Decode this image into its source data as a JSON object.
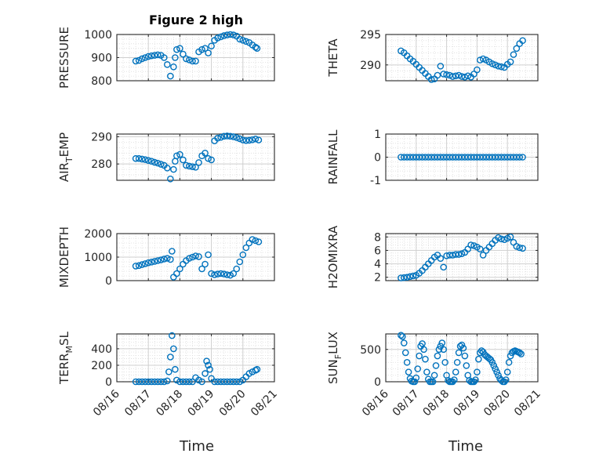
{
  "figure": {
    "title": "Figure 2 high",
    "marker_color": "#0072BD"
  },
  "chart_data": [
    {
      "type": "scatter",
      "ylabel_main": "PRESSURE",
      "ylabel_sub": "",
      "ylim": [
        800,
        1000
      ],
      "yticks": [
        800,
        900,
        1000
      ],
      "xlim": [
        0,
        5
      ],
      "xticks": [
        0,
        1,
        2,
        3,
        4,
        5
      ],
      "xticklabels": [
        "08/16",
        "08/17",
        "08/18",
        "08/19",
        "08/20",
        "08/21"
      ],
      "x": [
        0.6,
        0.7,
        0.8,
        0.9,
        1.0,
        1.1,
        1.2,
        1.3,
        1.4,
        1.5,
        1.6,
        1.7,
        1.8,
        1.85,
        1.9,
        2.0,
        2.1,
        2.2,
        2.3,
        2.4,
        2.5,
        2.6,
        2.7,
        2.8,
        2.9,
        3.0,
        3.1,
        3.2,
        3.3,
        3.4,
        3.5,
        3.6,
        3.7,
        3.8,
        3.9,
        4.0,
        4.1,
        4.2,
        4.3,
        4.4,
        4.45
      ],
      "y": [
        885,
        888,
        895,
        900,
        905,
        908,
        910,
        912,
        910,
        900,
        870,
        820,
        860,
        900,
        935,
        940,
        915,
        895,
        890,
        885,
        885,
        925,
        935,
        940,
        920,
        950,
        975,
        985,
        990,
        995,
        998,
        1000,
        998,
        993,
        980,
        975,
        970,
        965,
        955,
        945,
        940
      ],
      "grid": true,
      "minor_grid": true
    },
    {
      "type": "scatter",
      "ylabel_main": "THETA",
      "ylabel_sub": "",
      "ylim": [
        287.4,
        295
      ],
      "yticks": [
        290,
        295
      ],
      "xlim": [
        0,
        5
      ],
      "xticks": [
        0,
        1,
        2,
        3,
        4,
        5
      ],
      "xticklabels": [
        "08/16",
        "08/17",
        "08/18",
        "08/19",
        "08/20",
        "08/21"
      ],
      "x": [
        0.5,
        0.6,
        0.7,
        0.8,
        0.9,
        1.0,
        1.1,
        1.2,
        1.3,
        1.4,
        1.5,
        1.6,
        1.7,
        1.8,
        1.9,
        2.0,
        2.1,
        2.2,
        2.3,
        2.4,
        2.5,
        2.6,
        2.7,
        2.8,
        2.9,
        3.0,
        3.1,
        3.2,
        3.3,
        3.4,
        3.5,
        3.6,
        3.7,
        3.8,
        3.9,
        4.0,
        4.1,
        4.2,
        4.3,
        4.4,
        4.5
      ],
      "y": [
        292.3,
        292.0,
        291.5,
        291.0,
        290.6,
        290.1,
        289.6,
        289.1,
        288.6,
        288.1,
        287.6,
        287.7,
        288.3,
        289.8,
        288.5,
        288.4,
        288.3,
        288.1,
        288.2,
        288.3,
        288.1,
        288.0,
        288.2,
        288.0,
        288.5,
        289.2,
        290.8,
        291.0,
        290.8,
        290.5,
        290.2,
        290.0,
        289.8,
        289.7,
        289.6,
        290.1,
        290.5,
        291.7,
        292.7,
        293.5,
        294.0
      ],
      "grid": true,
      "minor_grid": true
    },
    {
      "type": "scatter",
      "ylabel_main": "AIR",
      "ylabel_sub": "T",
      "ylabel_rest": "EMP",
      "ylim": [
        274,
        291
      ],
      "yticks": [
        280,
        290
      ],
      "xlim": [
        0,
        5
      ],
      "xticks": [
        0,
        1,
        2,
        3,
        4,
        5
      ],
      "xticklabels": [
        "08/16",
        "08/17",
        "08/18",
        "08/19",
        "08/20",
        "08/21"
      ],
      "x": [
        0.6,
        0.7,
        0.8,
        0.9,
        1.0,
        1.1,
        1.2,
        1.3,
        1.4,
        1.5,
        1.6,
        1.7,
        1.8,
        1.85,
        1.9,
        2.0,
        2.1,
        2.2,
        2.3,
        2.4,
        2.5,
        2.6,
        2.7,
        2.8,
        2.9,
        3.0,
        3.1,
        3.2,
        3.3,
        3.4,
        3.5,
        3.6,
        3.7,
        3.8,
        3.9,
        4.0,
        4.1,
        4.2,
        4.3,
        4.4,
        4.5
      ],
      "y": [
        282,
        282,
        281.8,
        281.6,
        281.3,
        281,
        280.6,
        280.3,
        279.9,
        279.5,
        278.5,
        274.5,
        278,
        281,
        283,
        283.5,
        281.5,
        279.5,
        279.2,
        279,
        278.8,
        280.5,
        283,
        284,
        282,
        281.5,
        288.5,
        289.5,
        289.8,
        290.2,
        290.3,
        290.2,
        290,
        289.7,
        289.3,
        288.8,
        288.6,
        288.7,
        288.9,
        289.2,
        288.8
      ],
      "grid": true,
      "minor_grid": true
    },
    {
      "type": "scatter",
      "ylabel_main": "RAINFALL",
      "ylabel_sub": "",
      "ylim": [
        -1,
        1
      ],
      "yticks": [
        -1,
        0,
        1
      ],
      "xlim": [
        0,
        5
      ],
      "xticks": [
        0,
        1,
        2,
        3,
        4,
        5
      ],
      "xticklabels": [
        "08/16",
        "08/17",
        "08/18",
        "08/19",
        "08/20",
        "08/21"
      ],
      "x": [
        0.5,
        0.6,
        0.7,
        0.8,
        0.9,
        1.0,
        1.1,
        1.2,
        1.3,
        1.4,
        1.5,
        1.6,
        1.7,
        1.8,
        1.9,
        2.0,
        2.1,
        2.2,
        2.3,
        2.4,
        2.5,
        2.6,
        2.7,
        2.8,
        2.9,
        3.0,
        3.1,
        3.2,
        3.3,
        3.4,
        3.5,
        3.6,
        3.7,
        3.8,
        3.9,
        4.0,
        4.1,
        4.2,
        4.3,
        4.4,
        4.5
      ],
      "y": [
        0,
        0,
        0,
        0,
        0,
        0,
        0,
        0,
        0,
        0,
        0,
        0,
        0,
        0,
        0,
        0,
        0,
        0,
        0,
        0,
        0,
        0,
        0,
        0,
        0,
        0,
        0,
        0,
        0,
        0,
        0,
        0,
        0,
        0,
        0,
        0,
        0,
        0,
        0,
        0,
        0
      ],
      "grid": true,
      "minor_grid": true
    },
    {
      "type": "scatter",
      "ylabel_main": "MIXDEPTH",
      "ylabel_sub": "",
      "ylim": [
        0,
        2000
      ],
      "yticks": [
        0,
        1000,
        2000
      ],
      "xlim": [
        0,
        5
      ],
      "xticks": [
        0,
        1,
        2,
        3,
        4,
        5
      ],
      "xticklabels": [
        "08/16",
        "08/17",
        "08/18",
        "08/19",
        "08/20",
        "08/21"
      ],
      "x": [
        0.6,
        0.7,
        0.8,
        0.9,
        1.0,
        1.1,
        1.2,
        1.3,
        1.4,
        1.5,
        1.6,
        1.7,
        1.75,
        1.8,
        1.9,
        2.0,
        2.1,
        2.2,
        2.3,
        2.4,
        2.5,
        2.6,
        2.7,
        2.8,
        2.9,
        3.0,
        3.1,
        3.2,
        3.3,
        3.4,
        3.5,
        3.6,
        3.7,
        3.8,
        3.9,
        4.0,
        4.1,
        4.2,
        4.3,
        4.4,
        4.5
      ],
      "y": [
        620,
        640,
        680,
        720,
        760,
        790,
        820,
        850,
        880,
        920,
        950,
        900,
        1250,
        150,
        300,
        500,
        700,
        850,
        950,
        1000,
        1050,
        1020,
        500,
        700,
        1100,
        300,
        250,
        280,
        300,
        280,
        250,
        230,
        300,
        500,
        800,
        1100,
        1400,
        1600,
        1750,
        1700,
        1650
      ],
      "grid": true,
      "minor_grid": true
    },
    {
      "type": "scatter",
      "ylabel_main": "H2OMIXRA",
      "ylabel_sub": "",
      "ylim": [
        1.5,
        8.5
      ],
      "yticks": [
        2,
        4,
        6,
        8
      ],
      "xlim": [
        0,
        5
      ],
      "xticks": [
        0,
        1,
        2,
        3,
        4,
        5
      ],
      "xticklabels": [
        "08/16",
        "08/17",
        "08/18",
        "08/19",
        "08/20",
        "08/21"
      ],
      "x": [
        0.5,
        0.6,
        0.7,
        0.8,
        0.9,
        1.0,
        1.1,
        1.2,
        1.3,
        1.4,
        1.5,
        1.6,
        1.7,
        1.8,
        1.9,
        2.0,
        2.1,
        2.2,
        2.3,
        2.4,
        2.5,
        2.6,
        2.7,
        2.8,
        2.9,
        3.0,
        3.1,
        3.2,
        3.3,
        3.4,
        3.5,
        3.6,
        3.7,
        3.8,
        3.9,
        4.0,
        4.1,
        4.2,
        4.3,
        4.4,
        4.5
      ],
      "y": [
        1.9,
        1.95,
        2.0,
        2.1,
        2.2,
        2.3,
        2.6,
        3.0,
        3.5,
        4.0,
        4.5,
        5.0,
        5.3,
        4.8,
        3.5,
        5.2,
        5.3,
        5.3,
        5.4,
        5.4,
        5.5,
        5.7,
        6.2,
        6.8,
        6.7,
        6.5,
        6.2,
        5.3,
        6.0,
        6.5,
        7.0,
        7.5,
        7.9,
        7.7,
        7.6,
        7.8,
        8.0,
        7.2,
        6.6,
        6.4,
        6.3
      ],
      "grid": true,
      "minor_grid": true
    },
    {
      "type": "scatter",
      "ylabel_main": "TERR",
      "ylabel_sub": "M",
      "ylabel_rest": "SL",
      "ylim": [
        0,
        580
      ],
      "yticks": [
        0,
        200,
        400
      ],
      "xlim": [
        0,
        5
      ],
      "xticks": [
        0,
        1,
        2,
        3,
        4,
        5
      ],
      "xticklabels": [
        "08/16",
        "08/17",
        "08/18",
        "08/19",
        "08/20",
        "08/21"
      ],
      "x": [
        0.6,
        0.7,
        0.8,
        0.9,
        1.0,
        1.1,
        1.2,
        1.3,
        1.4,
        1.5,
        1.6,
        1.65,
        1.7,
        1.75,
        1.8,
        1.85,
        1.9,
        2.0,
        2.1,
        2.2,
        2.3,
        2.4,
        2.5,
        2.6,
        2.7,
        2.8,
        2.85,
        2.9,
        2.95,
        3.0,
        3.1,
        3.2,
        3.3,
        3.4,
        3.5,
        3.6,
        3.7,
        3.8,
        3.9,
        4.0,
        4.1,
        4.2,
        4.3,
        4.4,
        4.45
      ],
      "y": [
        0,
        0,
        0,
        0,
        0,
        0,
        0,
        0,
        0,
        0,
        10,
        120,
        300,
        560,
        400,
        150,
        20,
        0,
        0,
        0,
        0,
        0,
        50,
        20,
        0,
        100,
        250,
        200,
        150,
        40,
        0,
        0,
        0,
        0,
        0,
        0,
        0,
        0,
        0,
        20,
        60,
        100,
        120,
        140,
        150
      ],
      "grid": true,
      "minor_grid": true
    },
    {
      "type": "scatter",
      "ylabel_main": "SUN",
      "ylabel_sub": "F",
      "ylabel_rest": "LUX",
      "ylim": [
        0,
        740
      ],
      "yticks": [
        0,
        500
      ],
      "xlim": [
        0,
        5
      ],
      "xticks": [
        0,
        1,
        2,
        3,
        4,
        5
      ],
      "xticklabels": [
        "08/16",
        "08/17",
        "08/18",
        "08/19",
        "08/20",
        "08/21"
      ],
      "x": [
        0.5,
        0.55,
        0.6,
        0.65,
        0.7,
        0.75,
        0.8,
        0.85,
        0.9,
        0.95,
        1.0,
        1.05,
        1.1,
        1.15,
        1.2,
        1.25,
        1.3,
        1.35,
        1.4,
        1.45,
        1.5,
        1.55,
        1.6,
        1.65,
        1.7,
        1.75,
        1.8,
        1.85,
        1.9,
        1.95,
        2.0,
        2.05,
        2.1,
        2.15,
        2.2,
        2.25,
        2.3,
        2.35,
        2.4,
        2.45,
        2.5,
        2.55,
        2.6,
        2.65,
        2.7,
        2.75,
        2.8,
        2.85,
        2.9,
        2.95,
        3.0,
        3.05,
        3.1,
        3.15,
        3.2,
        3.25,
        3.3,
        3.35,
        3.4,
        3.45,
        3.5,
        3.55,
        3.6,
        3.65,
        3.7,
        3.75,
        3.8,
        3.85,
        3.9,
        3.95,
        4.0,
        4.05,
        4.1,
        4.15,
        4.2,
        4.25,
        4.3,
        4.35,
        4.4,
        4.45
      ],
      "y": [
        720,
        700,
        600,
        450,
        300,
        150,
        50,
        10,
        0,
        0,
        60,
        200,
        400,
        550,
        590,
        500,
        350,
        150,
        40,
        0,
        0,
        0,
        100,
        250,
        400,
        500,
        550,
        600,
        500,
        300,
        100,
        20,
        0,
        0,
        0,
        30,
        150,
        300,
        450,
        550,
        570,
        520,
        400,
        250,
        100,
        20,
        0,
        0,
        0,
        30,
        150,
        350,
        450,
        480,
        460,
        420,
        400,
        380,
        360,
        340,
        300,
        250,
        200,
        150,
        100,
        50,
        20,
        0,
        0,
        30,
        150,
        300,
        400,
        450,
        470,
        480,
        470,
        460,
        450,
        430
      ],
      "grid": true,
      "minor_grid": true
    }
  ],
  "xlabel": "Time"
}
